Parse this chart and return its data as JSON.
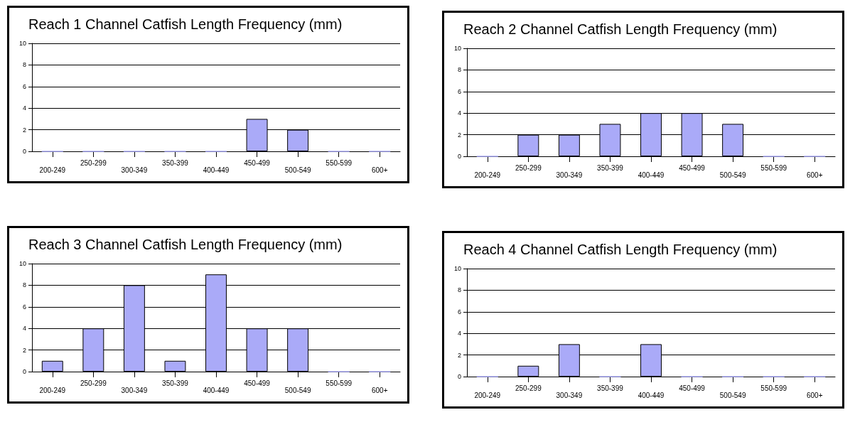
{
  "chart_data": [
    {
      "type": "bar",
      "title": "Reach 1 Channel Catfish Length Frequency (mm)",
      "categories": [
        "200-249",
        "250-299",
        "300-349",
        "350-399",
        "400-449",
        "450-499",
        "500-549",
        "550-599",
        "600+"
      ],
      "values": [
        0,
        0,
        0,
        0,
        0,
        3,
        2,
        0,
        0
      ],
      "color": "#aaaaf8",
      "ylim": [
        0,
        10
      ],
      "yticks": [
        0,
        2,
        4,
        6,
        8,
        10
      ],
      "grid": "y"
    },
    {
      "type": "bar",
      "title": "Reach 2 Channel Catfish Length Frequency (mm)",
      "categories": [
        "200-249",
        "250-299",
        "300-349",
        "350-399",
        "400-449",
        "450-499",
        "500-549",
        "550-599",
        "600+"
      ],
      "values": [
        0,
        2,
        2,
        3,
        4,
        4,
        3,
        0,
        0
      ],
      "color": "#aaaaf8",
      "ylim": [
        0,
        10
      ],
      "yticks": [
        0,
        2,
        4,
        6,
        8,
        10
      ],
      "grid": "y"
    },
    {
      "type": "bar",
      "title": "Reach 3 Channel Catfish Length Frequency (mm)",
      "categories": [
        "200-249",
        "250-299",
        "300-349",
        "350-399",
        "400-449",
        "450-499",
        "500-549",
        "550-599",
        "600+"
      ],
      "values": [
        1,
        4,
        8,
        1,
        9,
        4,
        4,
        0,
        0
      ],
      "color": "#aaaaf8",
      "ylim": [
        0,
        10
      ],
      "yticks": [
        0,
        2,
        4,
        6,
        8,
        10
      ],
      "grid": "y"
    },
    {
      "type": "bar",
      "title": "Reach 4 Channel Catfish Length Frequency (mm)",
      "categories": [
        "200-249",
        "250-299",
        "300-349",
        "350-399",
        "400-449",
        "450-499",
        "500-549",
        "550-599",
        "600+"
      ],
      "values": [
        0,
        1,
        3,
        0,
        3,
        0,
        0,
        0,
        0
      ],
      "color": "#aaaaf8",
      "ylim": [
        0,
        10
      ],
      "yticks": [
        0,
        2,
        4,
        6,
        8,
        10
      ],
      "grid": "y"
    }
  ]
}
